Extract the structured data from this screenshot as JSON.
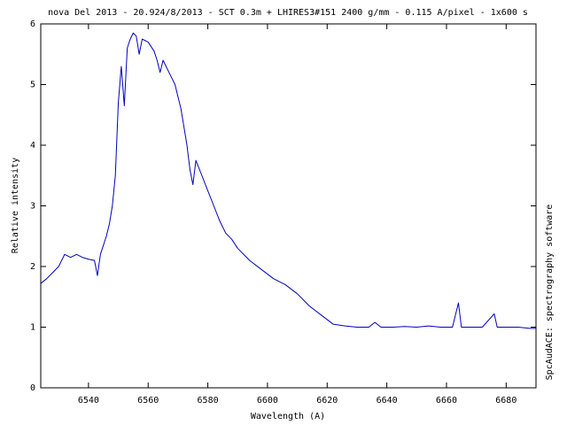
{
  "chart_data": {
    "type": "line",
    "title": "nova Del 2013 - 20.924/8/2013 - SCT 0.3m + LHIRES3#151 2400 g/mm - 0.115 A/pixel - 1x600 s",
    "x_label": "Wavelength (A)",
    "y_label": "Relative intensity",
    "side_note": "SpcAudACE: spectrography software",
    "color": "#0000c0",
    "x": [
      6524,
      6526,
      6528,
      6530,
      6532,
      6534,
      6536,
      6538,
      6540,
      6542,
      6543,
      6544,
      6546,
      6547,
      6548,
      6549,
      6550,
      6551,
      6552,
      6553,
      6554,
      6555,
      6556,
      6557,
      6558,
      6560,
      6562,
      6563,
      6564,
      6565,
      6567,
      6569,
      6570,
      6571,
      6572,
      6573,
      6574,
      6575,
      6576,
      6578,
      6580,
      6582,
      6584,
      6586,
      6588,
      6590,
      6594,
      6598,
      6602,
      6606,
      6610,
      6614,
      6618,
      6622,
      6626,
      6630,
      6634,
      6636,
      6638,
      6642,
      6646,
      6650,
      6654,
      6658,
      6662,
      6664,
      6665,
      6668,
      6672,
      6676,
      6677,
      6680,
      6684,
      6688,
      6690
    ],
    "values": [
      1.72,
      1.8,
      1.9,
      2.0,
      2.2,
      2.15,
      2.2,
      2.15,
      2.12,
      2.1,
      1.85,
      2.2,
      2.5,
      2.7,
      3.0,
      3.5,
      4.7,
      5.3,
      4.65,
      5.6,
      5.75,
      5.85,
      5.8,
      5.5,
      5.75,
      5.7,
      5.55,
      5.4,
      5.2,
      5.4,
      5.2,
      5.0,
      4.8,
      4.6,
      4.3,
      4.0,
      3.6,
      3.35,
      3.75,
      3.5,
      3.25,
      3.0,
      2.75,
      2.55,
      2.45,
      2.3,
      2.1,
      1.95,
      1.8,
      1.7,
      1.55,
      1.35,
      1.2,
      1.05,
      1.02,
      1.0,
      1.0,
      1.08,
      1.0,
      1.0,
      1.01,
      1.0,
      1.02,
      1.0,
      1.0,
      1.4,
      1.0,
      1.0,
      1.0,
      1.22,
      1.0,
      1.0,
      1.0,
      0.98,
      0.98
    ],
    "xlim": [
      6524,
      6690
    ],
    "ylim": [
      0,
      6
    ],
    "xticks": [
      6540,
      6560,
      6580,
      6600,
      6620,
      6640,
      6660,
      6680
    ],
    "yticks": [
      0,
      1,
      2,
      3,
      4,
      5,
      6
    ]
  }
}
